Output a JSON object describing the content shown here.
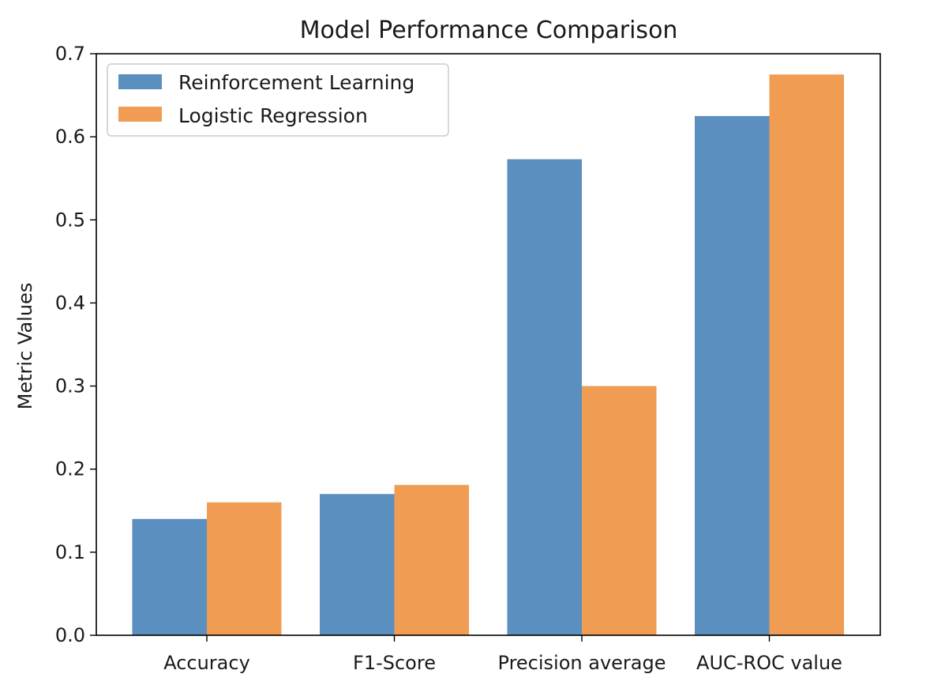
{
  "chart_data": {
    "type": "bar",
    "title": "Model Performance Comparison",
    "xlabel": "",
    "ylabel": "Metric Values",
    "categories": [
      "Accuracy",
      "F1-Score",
      "Precision average",
      "AUC-ROC value"
    ],
    "series": [
      {
        "name": "Reinforcement Learning",
        "values": [
          0.14,
          0.17,
          0.573,
          0.625
        ],
        "color": "#5b8fbf"
      },
      {
        "name": "Logistic Regression",
        "values": [
          0.16,
          0.181,
          0.3,
          0.675
        ],
        "color": "#f09c52"
      }
    ],
    "ylim": [
      0,
      0.7
    ],
    "yticks": [
      "0.0",
      "0.1",
      "0.2",
      "0.3",
      "0.4",
      "0.5",
      "0.6",
      "0.7"
    ],
    "grid": false,
    "legend_position": "top-left"
  }
}
